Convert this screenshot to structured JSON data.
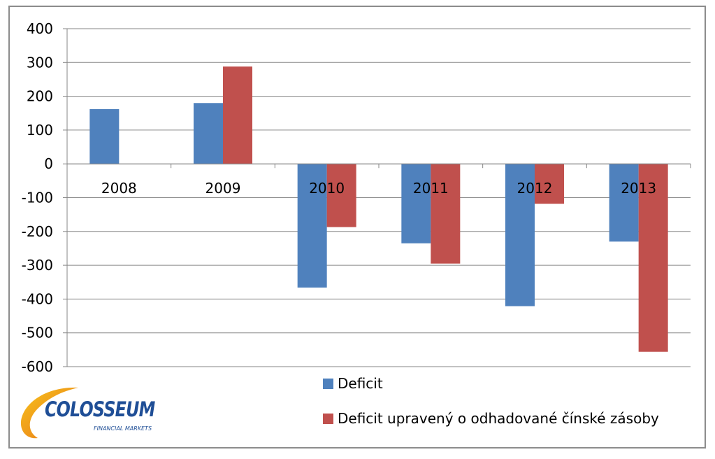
{
  "chart_data": {
    "type": "bar",
    "categories": [
      "2008",
      "2009",
      "2010",
      "2011",
      "2012",
      "2013"
    ],
    "series": [
      {
        "name": "Deficit",
        "color": "#4f81bd",
        "values": [
          162,
          180,
          -366,
          -235,
          -421,
          -230
        ]
      },
      {
        "name": "Deficit upravený o odhadované čínské zásoby",
        "color": "#c0504d",
        "values": [
          null,
          288,
          -187,
          -295,
          -118,
          -556
        ]
      }
    ],
    "yticks": [
      400,
      300,
      200,
      100,
      0,
      -100,
      -200,
      -300,
      -400,
      -500,
      -600
    ],
    "ylim": [
      -600,
      400
    ],
    "grid": true,
    "legend_position": "bottom"
  },
  "logo": {
    "text": "COLOSSEUM",
    "subtext": "FINANCIAL MARKETS"
  }
}
